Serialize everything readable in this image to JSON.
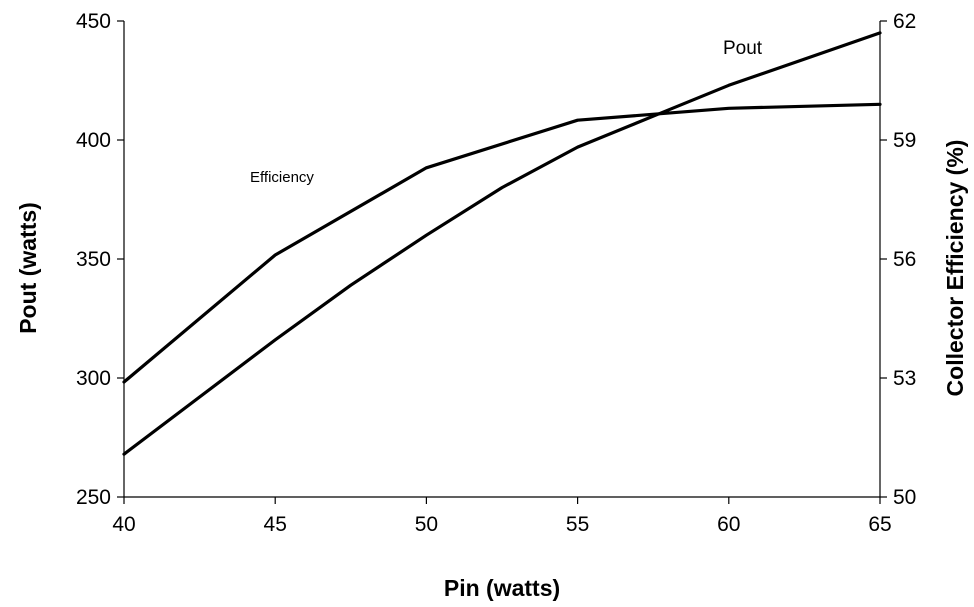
{
  "chart_data": {
    "type": "line",
    "xlabel": "Pin (watts)",
    "ylabel": "Pout (watts)",
    "y2label": "Collector Efficiency (%)",
    "xlim": [
      40,
      65
    ],
    "ylim": [
      250,
      450
    ],
    "y2lim": [
      50,
      62
    ],
    "xticks": [
      40,
      45,
      50,
      55,
      60,
      65
    ],
    "yticks": [
      250,
      300,
      350,
      400,
      450
    ],
    "y2ticks": [
      50,
      53,
      56,
      59,
      62
    ],
    "grid": false,
    "legend": "none",
    "annotations": [
      {
        "text": "Pout",
        "series": "Pout"
      },
      {
        "text": "Efficiency",
        "series": "Efficiency"
      }
    ],
    "series": [
      {
        "name": "Pout",
        "axis": "left",
        "x": [
          40,
          42.5,
          45,
          47.5,
          50,
          52.5,
          55,
          57.5,
          60,
          62.5,
          65
        ],
        "y": [
          268,
          292,
          316,
          339,
          360,
          380,
          397,
          410,
          423,
          434,
          445
        ]
      },
      {
        "name": "Efficiency",
        "axis": "right",
        "x": [
          40,
          45,
          50,
          55,
          60,
          65
        ],
        "y": [
          52.9,
          56.1,
          58.3,
          59.5,
          59.8,
          59.9
        ]
      }
    ],
    "line_color": "#000000"
  }
}
